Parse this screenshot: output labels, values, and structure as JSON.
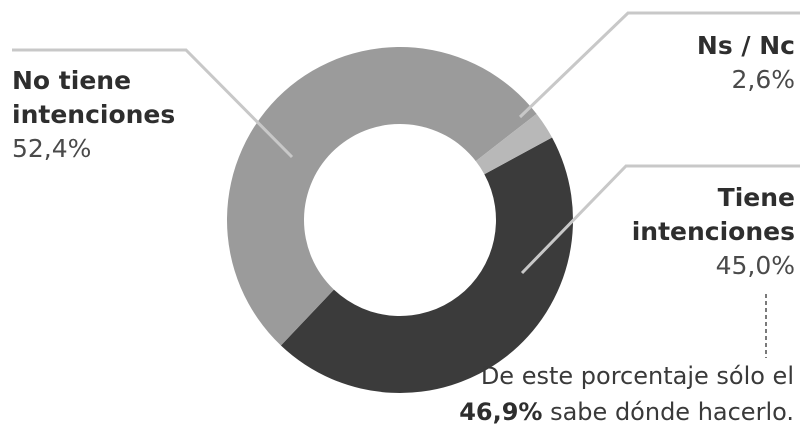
{
  "chart_data": {
    "type": "pie",
    "variant": "donut",
    "title": "",
    "slices": [
      {
        "label_line1": "No tiene",
        "label_line2": "intenciones",
        "pct_label": "52,4%",
        "value": 52.4,
        "color": "#9b9b9b"
      },
      {
        "label_line1": "Tiene",
        "label_line2": "intenciones",
        "pct_label": "45,0%",
        "value": 45.0,
        "color": "#3b3b3b"
      },
      {
        "label_line1": "Ns / Nc",
        "label_line2": "",
        "pct_label": "2,6%",
        "value": 2.6,
        "color": "#b8b8b8"
      }
    ],
    "annotation": {
      "line1": "De este porcentaje sólo el",
      "highlight": "46,9%",
      "line2_rest": " sabe dónde hacerlo."
    }
  }
}
